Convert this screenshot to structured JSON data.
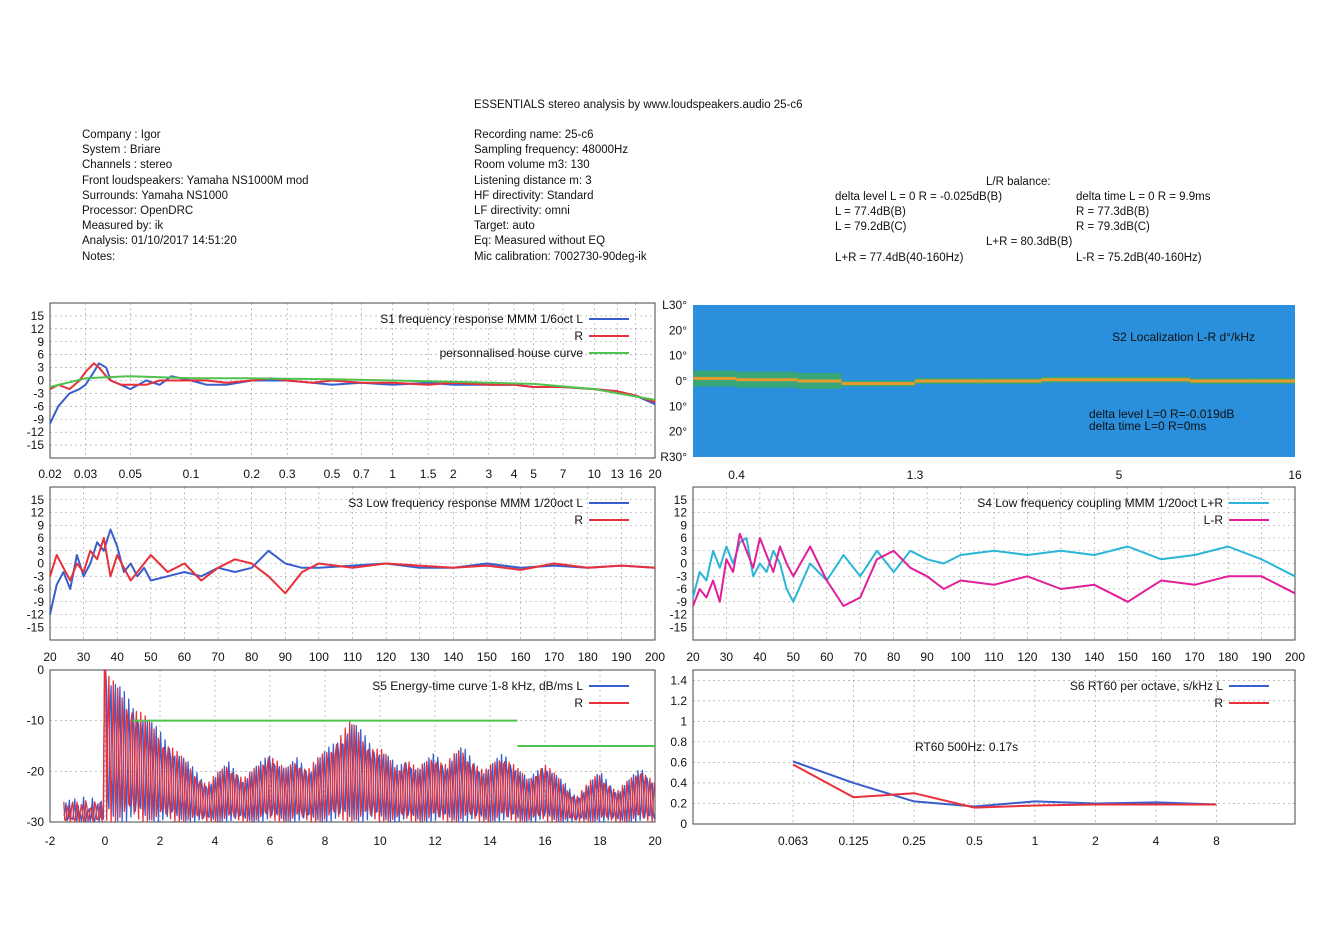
{
  "report": {
    "title": "ESSENTIALS stereo analysis by www.loudspeakers.audio     25-c6",
    "info_left": [
      "Company : Igor",
      "System : Briare",
      "Channels : stereo",
      "Front loudspeakers: Yamaha NS1000M mod",
      "Surrounds: Yamaha NS1000",
      "Processor: OpenDRC",
      "Measured by: ik",
      "Analysis: 01/10/2017 14:51:20",
      "Notes:"
    ],
    "info_middle": [
      "Recording name: 25-c6",
      "Sampling frequency: 48000Hz",
      "Room volume m3: 130",
      "Listening distance m: 3",
      "HF directivity: Standard",
      "LF directivity: omni",
      "Target: auto",
      "Eq: Measured without EQ",
      "Mic calibration: 7002730-90deg-ik"
    ],
    "balance": {
      "heading": "L/R balance:",
      "delta_level": "delta level L = 0  R = -0.025dB(B)",
      "level_l_b": "L = 77.4dB(B)",
      "level_l_c": "L = 79.2dB(C)",
      "lr_sum": "L+R = 80.3dB(B)",
      "lr_sum_lf": "L+R = 77.4dB(40-160Hz)",
      "delta_time": "delta time  L = 0  R = 9.9ms",
      "level_r_b": "R = 77.3dB(B)",
      "level_r_c": "R = 79.3dB(C)",
      "lr_diff_lf": "L-R = 75.2dB(40-160Hz)"
    }
  },
  "colors": {
    "blue": "#3a5fcd",
    "red": "#e8303a",
    "green": "#4fc24f",
    "cyan": "#2bb6d8",
    "magenta": "#e0209a",
    "heat_bg": "#2a8fdc"
  },
  "chart_data": [
    {
      "id": "S1",
      "type": "line",
      "title": "S1   frequency response MMM 1/6oct L",
      "legend": [
        "R",
        "personnalised house curve"
      ],
      "x_scale": "log",
      "xlim": [
        0.02,
        20
      ],
      "ylim": [
        -18,
        18
      ],
      "x_ticks": [
        0.02,
        0.03,
        0.05,
        0.1,
        0.2,
        0.3,
        0.5,
        0.7,
        1,
        1.5,
        2,
        3,
        4,
        5,
        7,
        10,
        13,
        16,
        20
      ],
      "x_tick_labels": [
        "0.02",
        "0.03",
        "0.05",
        "0.1",
        "0.2",
        "0.3",
        "0.5",
        "0.7",
        "1",
        "1.5",
        "2",
        "3",
        "4",
        "5",
        "7",
        "10",
        "13",
        "16",
        "20"
      ],
      "y_ticks": [
        15,
        12,
        9,
        6,
        3,
        0,
        -3,
        -6,
        -9,
        -12,
        -15
      ],
      "y_tick_labels": [
        "15",
        "12",
        "9",
        "6",
        "3",
        "0",
        "-3",
        "-6",
        "-9",
        "-12",
        "-15"
      ],
      "series": [
        {
          "name": "L",
          "color": "blue",
          "x": [
            0.02,
            0.022,
            0.025,
            0.028,
            0.03,
            0.033,
            0.035,
            0.038,
            0.04,
            0.045,
            0.05,
            0.06,
            0.07,
            0.08,
            0.1,
            0.12,
            0.15,
            0.2,
            0.25,
            0.3,
            0.4,
            0.5,
            0.7,
            1,
            1.5,
            2,
            3,
            4,
            5,
            7,
            10,
            13,
            16,
            20
          ],
          "y": [
            -10,
            -6,
            -3,
            -2,
            -1,
            2,
            4,
            3,
            0,
            -1,
            -2,
            0,
            -1,
            1,
            0,
            -1,
            -1,
            0,
            0,
            0,
            -0.5,
            -1,
            -0.5,
            -1,
            -0.5,
            -1,
            -1,
            -1,
            -1.5,
            -1.5,
            -2,
            -2.5,
            -3.5,
            -5.5
          ]
        },
        {
          "name": "R",
          "color": "red",
          "x": [
            0.02,
            0.022,
            0.025,
            0.028,
            0.03,
            0.033,
            0.035,
            0.038,
            0.04,
            0.045,
            0.05,
            0.06,
            0.07,
            0.08,
            0.1,
            0.12,
            0.15,
            0.2,
            0.25,
            0.3,
            0.4,
            0.5,
            0.7,
            1,
            1.5,
            2,
            3,
            4,
            5,
            7,
            10,
            13,
            16,
            20
          ],
          "y": [
            -2,
            -1,
            -2,
            0,
            2,
            4,
            3,
            1,
            0,
            -1,
            -1,
            -1,
            0,
            0,
            0,
            0,
            -0.5,
            0,
            0.5,
            0,
            -0.5,
            0,
            -0.5,
            -0.5,
            -1,
            -0.5,
            -1,
            -1,
            -1.5,
            -1.5,
            -2,
            -2.5,
            -3.5,
            -5
          ]
        },
        {
          "name": "personnalised house curve",
          "color": "green",
          "x": [
            0.02,
            0.03,
            0.05,
            0.1,
            0.2,
            0.5,
            1,
            2,
            5,
            10,
            20
          ],
          "y": [
            -1.5,
            0.5,
            1,
            0.5,
            0.5,
            0.3,
            0,
            -0.3,
            -0.8,
            -2,
            -4.5
          ]
        }
      ]
    },
    {
      "id": "S2",
      "type": "heatmap",
      "title": "S2   Localization L-R d°/kHz",
      "x_tick_labels": [
        "0.4",
        "1.3",
        "5",
        "16"
      ],
      "x_ticks": [
        0.4,
        1.3,
        5,
        16
      ],
      "y_tick_labels": [
        "L30°",
        "20°",
        "10°",
        "0°",
        "10°",
        "20°",
        "R30°"
      ],
      "annotation_1": "delta level  L=0  R=-0.019dB",
      "annotation_2": "delta time  L=0  R=0ms",
      "track_x": [
        0.3,
        0.4,
        0.6,
        0.8,
        1.0,
        1.3,
        2,
        3,
        5,
        8,
        12,
        16
      ],
      "track_y": [
        1,
        0.5,
        0,
        -1,
        -1,
        0,
        0,
        0.5,
        0.5,
        0,
        0,
        0.5
      ]
    },
    {
      "id": "S3",
      "type": "line",
      "title": "S3   Low frequency response MMM 1/20oct L",
      "legend": [
        "R"
      ],
      "xlim": [
        20,
        200
      ],
      "ylim": [
        -18,
        18
      ],
      "x_ticks": [
        20,
        30,
        40,
        50,
        60,
        70,
        80,
        90,
        100,
        110,
        120,
        130,
        140,
        150,
        160,
        170,
        180,
        190,
        200
      ],
      "x_tick_labels": [
        "20",
        "30",
        "40",
        "50",
        "60",
        "70",
        "80",
        "90",
        "100",
        "110",
        "120",
        "130",
        "140",
        "150",
        "160",
        "170",
        "180",
        "190",
        "200"
      ],
      "y_ticks": [
        15,
        12,
        9,
        6,
        3,
        0,
        -3,
        -6,
        -9,
        -12,
        -15
      ],
      "y_tick_labels": [
        "15",
        "12",
        "9",
        "6",
        "3",
        "0",
        "-3",
        "-6",
        "-9",
        "-12",
        "-15"
      ],
      "series": [
        {
          "name": "L",
          "color": "blue",
          "x": [
            20,
            22,
            24,
            26,
            28,
            30,
            32,
            34,
            36,
            38,
            40,
            42,
            44,
            46,
            48,
            50,
            55,
            60,
            65,
            70,
            75,
            80,
            85,
            90,
            95,
            100,
            110,
            120,
            130,
            140,
            150,
            160,
            170,
            180,
            190,
            200
          ],
          "y": [
            -12,
            -5,
            -2,
            -6,
            2,
            -3,
            0,
            5,
            3,
            8,
            4,
            -2,
            0,
            -3,
            -1,
            -4,
            -3,
            -2,
            -3,
            -1,
            -2,
            -1,
            3,
            0,
            -1,
            -1,
            -0.5,
            0,
            -1,
            -1,
            0,
            -1,
            -0.5,
            -1,
            -0.5,
            -1
          ]
        },
        {
          "name": "R",
          "color": "red",
          "x": [
            20,
            22,
            24,
            26,
            28,
            30,
            32,
            34,
            36,
            38,
            40,
            42,
            44,
            46,
            48,
            50,
            55,
            60,
            65,
            70,
            75,
            80,
            85,
            90,
            95,
            100,
            110,
            120,
            130,
            140,
            150,
            160,
            170,
            180,
            190,
            200
          ],
          "y": [
            -3,
            2,
            -1,
            -4,
            0,
            -2,
            3,
            1,
            6,
            -3,
            2,
            -1,
            -4,
            -2,
            0,
            2,
            -2,
            0,
            -4,
            -1,
            1,
            0,
            -3,
            -7,
            -2,
            0,
            -1,
            0,
            -0.5,
            -1,
            -0.5,
            -1.5,
            0,
            -1,
            -0.5,
            -1
          ]
        }
      ]
    },
    {
      "id": "S4",
      "type": "line",
      "title": "S4   Low frequency coupling MMM 1/20oct L+R",
      "legend": [
        "L-R"
      ],
      "xlim": [
        20,
        200
      ],
      "ylim": [
        -18,
        18
      ],
      "x_ticks": [
        20,
        30,
        40,
        50,
        60,
        70,
        80,
        90,
        100,
        110,
        120,
        130,
        140,
        150,
        160,
        170,
        180,
        190,
        200
      ],
      "x_tick_labels": [
        "20",
        "30",
        "40",
        "50",
        "60",
        "70",
        "80",
        "90",
        "100",
        "110",
        "120",
        "130",
        "140",
        "150",
        "160",
        "170",
        "180",
        "190",
        "200"
      ],
      "y_ticks": [
        15,
        12,
        9,
        6,
        3,
        0,
        -3,
        -6,
        -9,
        -12,
        -15
      ],
      "y_tick_labels": [
        "15",
        "12",
        "9",
        "6",
        "3",
        "0",
        "-3",
        "-6",
        "-9",
        "-12",
        "-15"
      ],
      "series": [
        {
          "name": "L+R",
          "color": "cyan",
          "x": [
            20,
            22,
            24,
            26,
            28,
            30,
            32,
            34,
            36,
            38,
            40,
            42,
            44,
            46,
            48,
            50,
            55,
            60,
            65,
            70,
            75,
            80,
            85,
            90,
            95,
            100,
            110,
            120,
            130,
            140,
            150,
            160,
            170,
            180,
            190,
            200
          ],
          "y": [
            -8,
            -2,
            -4,
            3,
            -1,
            4,
            0,
            5,
            6,
            -3,
            0,
            -2,
            3,
            0,
            -6,
            -9,
            0,
            -4,
            2,
            -3,
            3,
            -2,
            3,
            1,
            0,
            2,
            3,
            2,
            3,
            2,
            4,
            1,
            2,
            4,
            1,
            -3
          ]
        },
        {
          "name": "L-R",
          "color": "magenta",
          "x": [
            20,
            22,
            24,
            26,
            28,
            30,
            32,
            34,
            36,
            38,
            40,
            42,
            44,
            46,
            48,
            50,
            55,
            60,
            65,
            70,
            75,
            80,
            85,
            90,
            95,
            100,
            110,
            120,
            130,
            140,
            150,
            160,
            170,
            180,
            190,
            200
          ],
          "y": [
            -10,
            -6,
            -8,
            -4,
            -9,
            1,
            -2,
            7,
            3,
            -1,
            6,
            2,
            -2,
            4,
            0,
            -3,
            4,
            -4,
            -10,
            -8,
            1,
            3,
            -1,
            -3,
            -6,
            -4,
            -5,
            -3,
            -6,
            -5,
            -9,
            -4,
            -5,
            -3,
            -3,
            -7
          ]
        }
      ]
    },
    {
      "id": "S5",
      "type": "line",
      "title": "S5   Energy-time curve 1-8 kHz, dB/ms L",
      "legend": [
        "R"
      ],
      "xlim": [
        -2,
        20
      ],
      "ylim": [
        -30,
        0
      ],
      "x_ticks": [
        -2,
        0,
        2,
        4,
        6,
        8,
        10,
        12,
        14,
        16,
        18,
        20
      ],
      "x_tick_labels": [
        "-2",
        "0",
        "2",
        "4",
        "6",
        "8",
        "10",
        "12",
        "14",
        "16",
        "18",
        "20"
      ],
      "y_ticks": [
        0,
        -10,
        -20,
        -30
      ],
      "y_tick_labels": [
        "0",
        "-10",
        "-20",
        "-30"
      ],
      "green_segments": [
        {
          "x": [
            1,
            15
          ],
          "y": [
            -10,
            -10
          ]
        },
        {
          "x": [
            15,
            20
          ],
          "y": [
            -15,
            -15
          ]
        }
      ],
      "peaks_x": [
        0,
        0.3,
        0.6,
        1,
        1.5,
        2,
        3,
        4.5,
        6,
        7,
        8.5,
        9,
        10,
        11,
        12,
        13,
        14.5,
        16,
        18,
        19.5
      ],
      "peaks_y": [
        0,
        -13,
        -12,
        -13,
        -18,
        -15,
        -20,
        -18,
        -16,
        -17,
        -18,
        -10,
        -15,
        -17,
        -16,
        -15,
        -16,
        -18,
        -20,
        -19
      ]
    },
    {
      "id": "S6",
      "type": "line",
      "title": "S6   RT60 per octave, s/kHz L",
      "legend": [
        "R"
      ],
      "annotation": "RT60 500Hz: 0.17s",
      "ylim": [
        0,
        1.5
      ],
      "x_tick_labels": [
        "0.063",
        "0.125",
        "0.25",
        "0.5",
        "1",
        "2",
        "4",
        "8"
      ],
      "y_ticks": [
        1.4,
        1.2,
        1,
        0.8,
        0.6,
        0.4,
        0.2,
        0
      ],
      "y_tick_labels": [
        "1.4",
        "1.2",
        "1",
        "0.8",
        "0.6",
        "0.4",
        "0.2",
        "0"
      ],
      "series": [
        {
          "name": "L",
          "color": "blue",
          "x": [
            "0.063",
            "0.125",
            "0.25",
            "0.5",
            "1",
            "2",
            "4",
            "8"
          ],
          "y": [
            0.61,
            0.4,
            0.22,
            0.17,
            0.22,
            0.2,
            0.21,
            0.19
          ]
        },
        {
          "name": "R",
          "color": "red",
          "x": [
            "0.063",
            "0.125",
            "0.25",
            "0.5",
            "1",
            "2",
            "4",
            "8"
          ],
          "y": [
            0.58,
            0.26,
            0.3,
            0.16,
            0.18,
            0.19,
            0.19,
            0.19
          ]
        }
      ]
    }
  ]
}
